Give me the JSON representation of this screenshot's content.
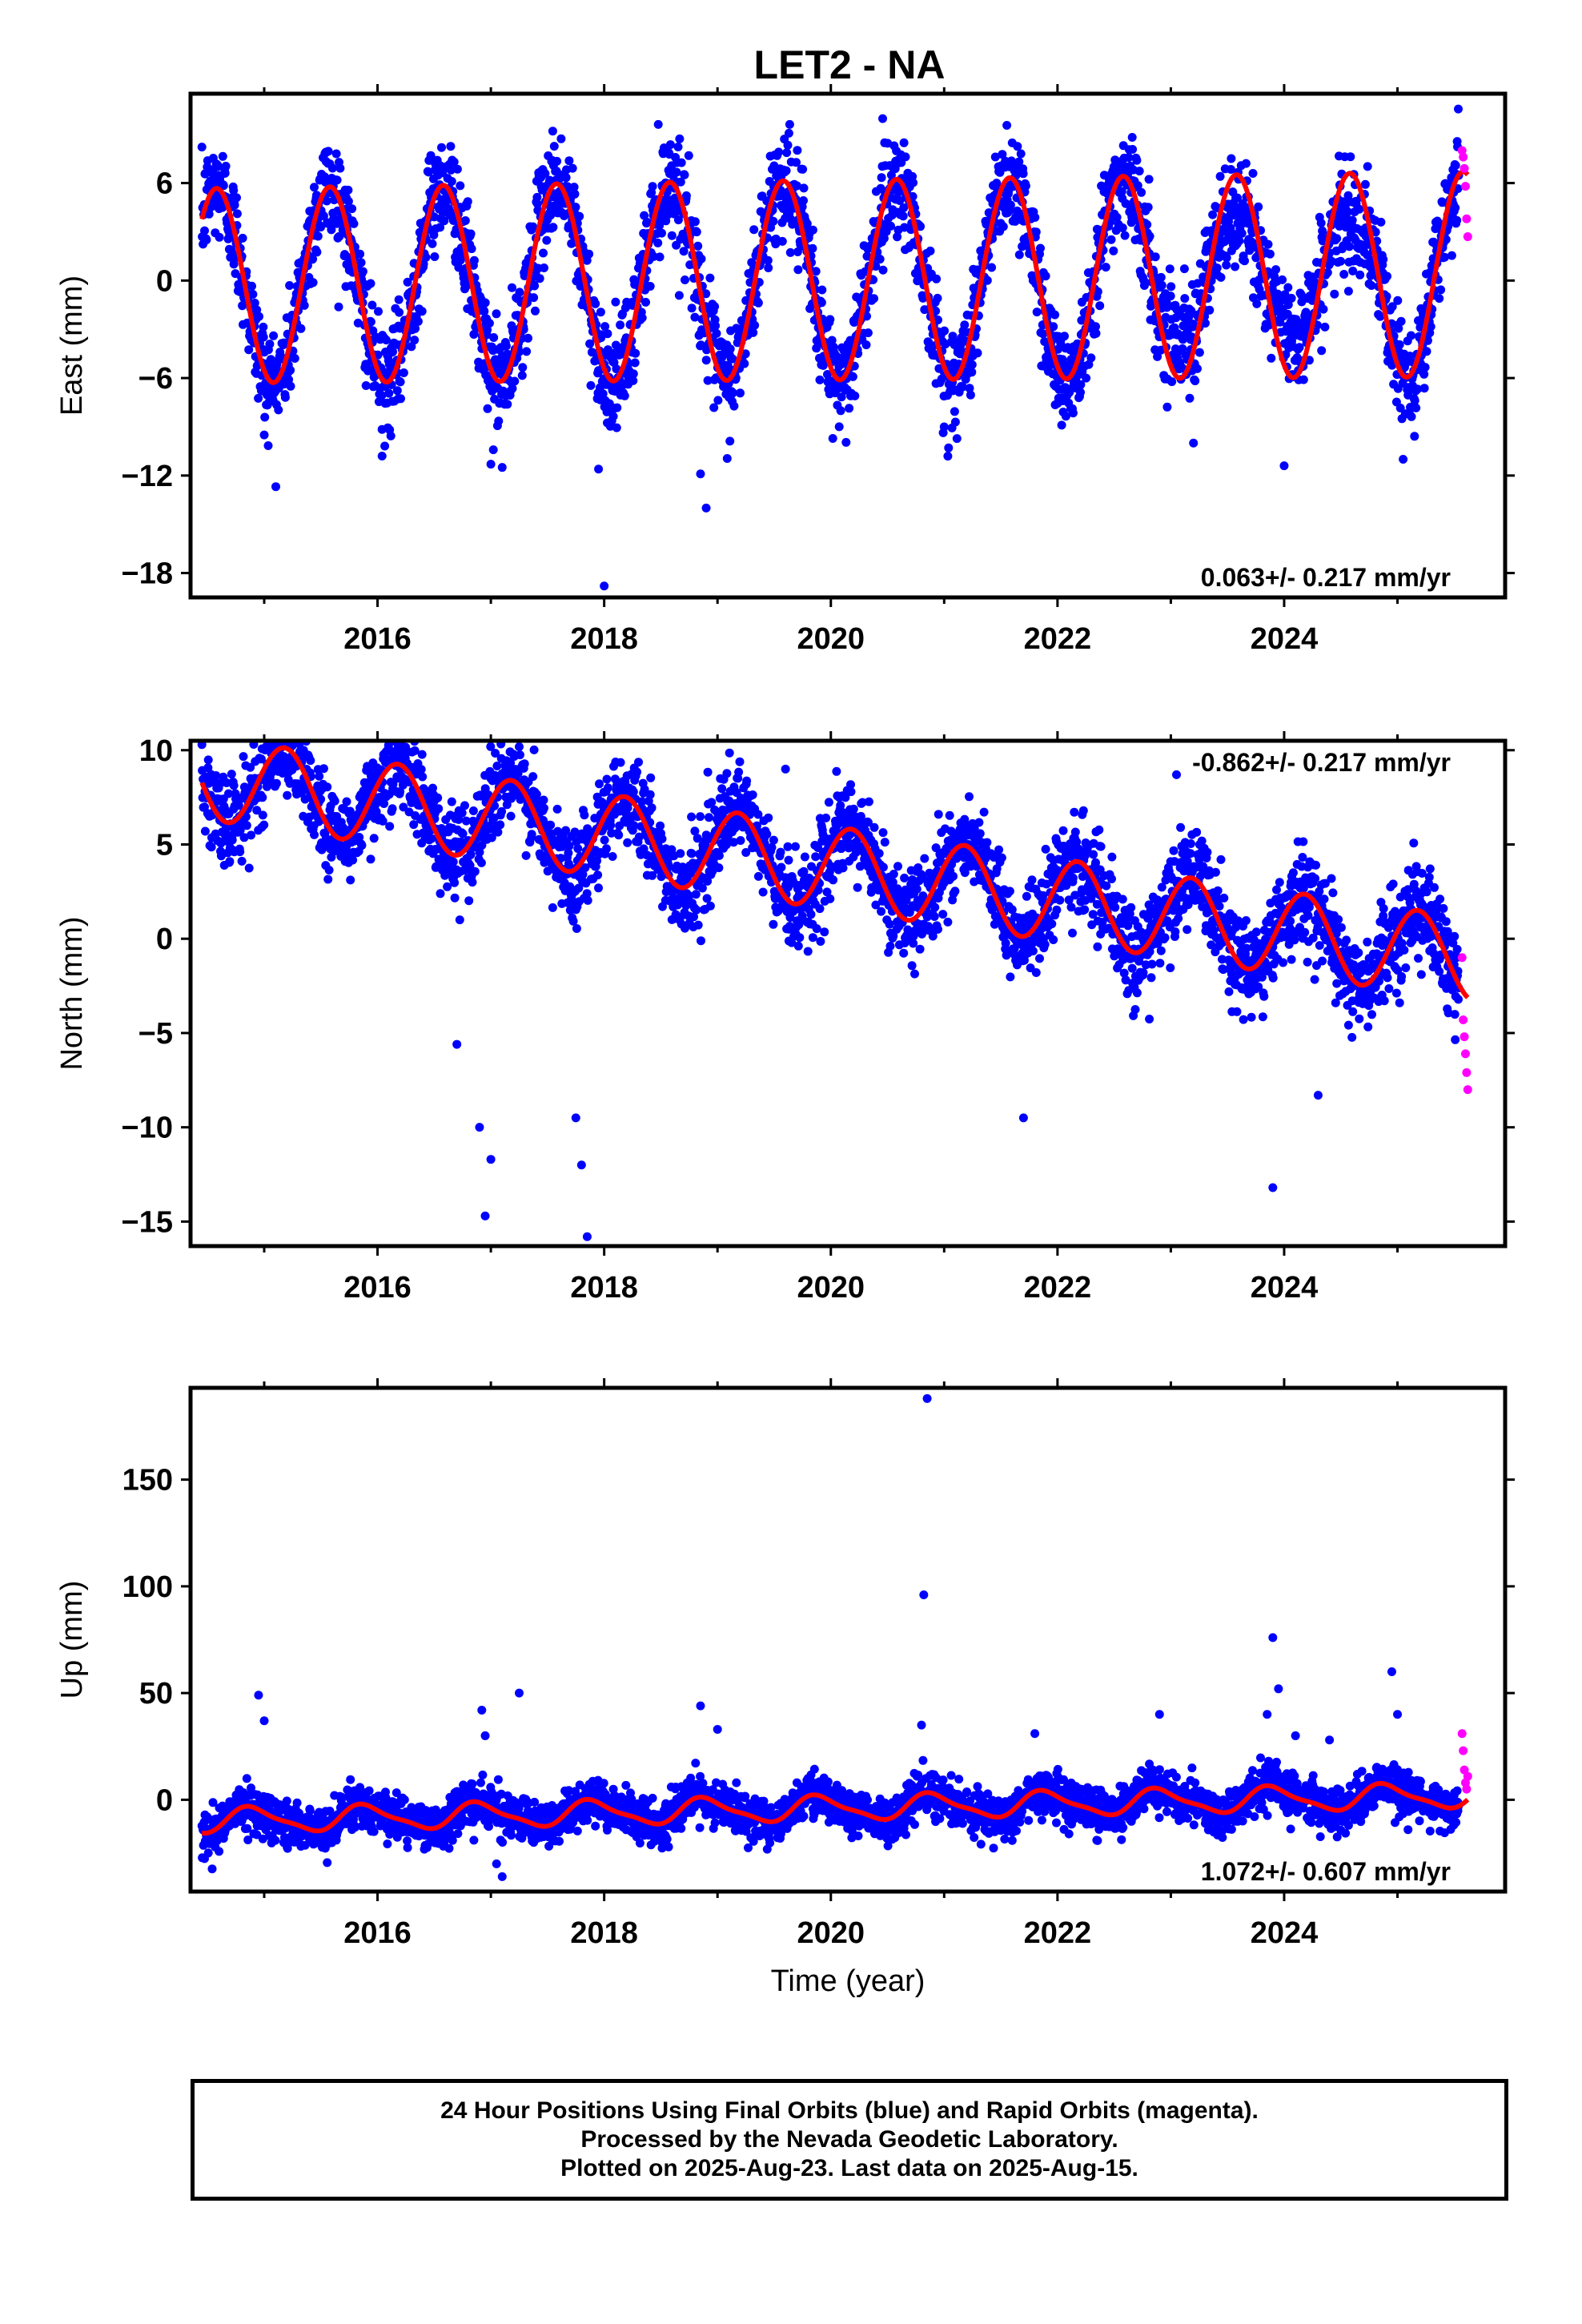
{
  "title": "LET2 - NA",
  "xlabel": "Time (year)",
  "colors": {
    "final": "#0000ff",
    "rapid": "#ff00ff",
    "model": "#ff0000",
    "axes": "#000000"
  },
  "caption": {
    "line1": "24 Hour Positions Using Final Orbits (blue) and Rapid Orbits (magenta).",
    "line2": "Processed by the Nevada Geodetic Laboratory.",
    "line3": "Plotted on 2025-Aug-23. Last data on 2025-Aug-15."
  },
  "chart_data": [
    {
      "type": "scatter",
      "panel": "east",
      "ylabel": "East (mm)",
      "xlim": [
        2014.35,
        2025.95
      ],
      "ylim": [
        -19.5,
        11.5
      ],
      "xticks": [
        2016,
        2018,
        2020,
        2022,
        2024
      ],
      "yticks": [
        6,
        0,
        -6,
        -12,
        -18
      ],
      "ytick_labels": [
        "6",
        "0",
        "−6",
        "−12",
        "−18"
      ],
      "rate_label": "0.063+/- 0.217 mm/yr",
      "rate_position": "bottom-right",
      "model": {
        "type": "line",
        "trend_offset": 0.0,
        "trend_rate": 0.063,
        "annual_amplitude": 6.0,
        "annual_phase_peak": 0.58,
        "amplitude_growth": 0.05,
        "semiannual_amplitude": 0.0,
        "semiannual_phase": 0.0,
        "x_start": 2014.45,
        "x_end": 2025.62
      },
      "final_series": {
        "x_start": 2014.45,
        "x_end": 2025.54,
        "count": 3300,
        "scatter_sd": 1.6,
        "anomaly": [
          {
            "from": 2022.9,
            "to": 2024.9,
            "annual_amplitude_scale": 0.6
          }
        ],
        "outliers": [
          [
            2018.0,
            -18.8
          ],
          [
            2018.9,
            -14.0
          ],
          [
            2018.85,
            -11.9
          ],
          [
            2017.0,
            -11.3
          ],
          [
            2017.1,
            -11.5
          ],
          [
            2016.04,
            -10.8
          ],
          [
            2017.95,
            -11.6
          ],
          [
            2015.0,
            -9.5
          ],
          [
            2021.0,
            -9.0
          ],
          [
            2023.2,
            -10.0
          ],
          [
            2024.0,
            -11.4
          ],
          [
            2025.05,
            -11.0
          ]
        ]
      },
      "rapid_series": {
        "x": [
          2025.57,
          2025.58,
          2025.59,
          2025.6,
          2025.61,
          2025.62
        ],
        "y": [
          8.0,
          7.6,
          6.9,
          5.8,
          3.8,
          2.7
        ]
      }
    },
    {
      "type": "scatter",
      "panel": "north",
      "ylabel": "North (mm)",
      "xlim": [
        2014.35,
        2025.95
      ],
      "ylim": [
        -16.3,
        10.5
      ],
      "xticks": [
        2016,
        2018,
        2020,
        2022,
        2024
      ],
      "yticks": [
        10,
        5,
        0,
        -5,
        -10,
        -15
      ],
      "ytick_labels": [
        "10",
        "5",
        "0",
        "−5",
        "−10",
        "−15"
      ],
      "rate_label": "-0.862+/- 0.217 mm/yr",
      "rate_position": "top-right",
      "model": {
        "type": "line",
        "trend_offset": 4.2,
        "trend_rate": -0.862,
        "annual_amplitude": 2.2,
        "annual_phase_peak": 0.18,
        "amplitude_growth": 0.0,
        "semiannual_amplitude": 0.0,
        "semiannual_phase": 0.0,
        "x_start": 2014.45,
        "x_end": 2025.62
      },
      "final_series": {
        "x_start": 2014.45,
        "x_end": 2025.54,
        "count": 3300,
        "scatter_sd": 1.2,
        "anomaly": [],
        "outliers": [
          [
            2015.1,
            9.8
          ],
          [
            2015.2,
            9.5
          ],
          [
            2017.0,
            8.5
          ],
          [
            2019.6,
            9.0
          ],
          [
            2023.05,
            8.7
          ],
          [
            2020.95,
            6.6
          ],
          [
            2016.95,
            -14.7
          ],
          [
            2017.0,
            -11.7
          ],
          [
            2016.9,
            -10.0
          ],
          [
            2017.85,
            -15.8
          ],
          [
            2017.8,
            -12.0
          ],
          [
            2017.75,
            -9.5
          ],
          [
            2016.7,
            -5.6
          ],
          [
            2023.9,
            -13.2
          ],
          [
            2021.7,
            -9.5
          ],
          [
            2024.3,
            -8.3
          ]
        ]
      },
      "rapid_series": {
        "x": [
          2025.57,
          2025.58,
          2025.59,
          2025.6,
          2025.61,
          2025.62
        ],
        "y": [
          -1.0,
          -4.3,
          -5.2,
          -6.1,
          -7.1,
          -8.0
        ]
      }
    },
    {
      "type": "scatter",
      "panel": "up",
      "ylabel": "Up (mm)",
      "xlim": [
        2014.35,
        2025.95
      ],
      "ylim": [
        -43.0,
        193.0
      ],
      "xticks": [
        2016,
        2018,
        2020,
        2022,
        2024
      ],
      "yticks": [
        150,
        100,
        50,
        0
      ],
      "ytick_labels": [
        "150",
        "100",
        "50",
        "0"
      ],
      "rate_label": "1.072+/- 0.607 mm/yr",
      "rate_position": "bottom-right",
      "model": {
        "type": "line",
        "trend_offset": -4.5,
        "trend_rate": 1.072,
        "annual_amplitude": 5.5,
        "annual_phase_peak": 0.9,
        "amplitude_growth": 0.0,
        "semiannual_amplitude": 1.5,
        "semiannual_phase": 0.3,
        "x_start": 2014.45,
        "x_end": 2025.62
      },
      "final_series": {
        "x_start": 2014.45,
        "x_end": 2025.54,
        "count": 3300,
        "scatter_sd": 5.0,
        "anomaly": [],
        "outliers": [
          [
            2020.85,
            188.0
          ],
          [
            2020.82,
            96.0
          ],
          [
            2014.95,
            49.0
          ],
          [
            2015.0,
            37.0
          ],
          [
            2017.25,
            50.0
          ],
          [
            2016.92,
            42.0
          ],
          [
            2016.95,
            30.0
          ],
          [
            2018.85,
            44.0
          ],
          [
            2019.0,
            33.0
          ],
          [
            2020.8,
            35.0
          ],
          [
            2021.8,
            31.0
          ],
          [
            2022.9,
            40.0
          ],
          [
            2023.9,
            76.0
          ],
          [
            2023.95,
            52.0
          ],
          [
            2023.85,
            40.0
          ],
          [
            2024.1,
            30.0
          ],
          [
            2024.4,
            28.0
          ],
          [
            2024.95,
            60.0
          ],
          [
            2025.0,
            40.0
          ],
          [
            2017.1,
            -36.0
          ],
          [
            2017.05,
            -30.0
          ]
        ]
      },
      "rapid_series": {
        "x": [
          2025.57,
          2025.58,
          2025.59,
          2025.6,
          2025.61,
          2025.62
        ],
        "y": [
          31.0,
          23.0,
          14.0,
          8.0,
          5.0,
          11.0
        ]
      }
    }
  ]
}
